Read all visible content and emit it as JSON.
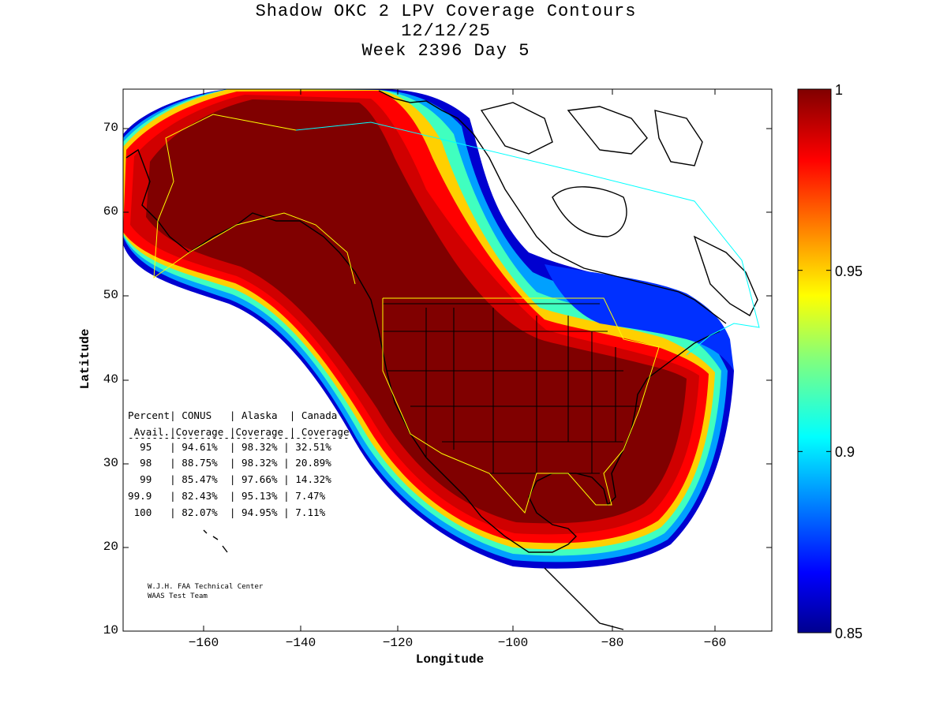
{
  "title": {
    "line1": "Shadow OKC 2 LPV Coverage Contours",
    "line2": "12/12/25",
    "line3": "Week 2396 Day 5"
  },
  "axes": {
    "xlabel": "Longitude",
    "ylabel": "Latitude",
    "x_ticks": [
      "−160",
      "−140",
      "−120",
      "−100",
      "−80",
      "−60"
    ],
    "y_ticks": [
      "70",
      "60",
      "50",
      "40",
      "30",
      "20",
      "10"
    ],
    "xlim": [
      -175,
      -50
    ],
    "ylim": [
      10,
      75
    ]
  },
  "colorbar": {
    "min": 0.85,
    "max": 1,
    "tick_labels": [
      "1",
      "0.95",
      "0.9",
      "0.85"
    ],
    "colormap": "jet"
  },
  "stats_table": {
    "header1": "Percent| CONUS   | Alaska  | Canada",
    "header2": " Avail.|Coverage |Coverage | Coverage",
    "rule": "-------------------------------------",
    "rows": [
      "  95   | 94.61%  | 98.32% | 32.51%",
      "  98   | 88.75%  | 98.32% | 20.89%",
      "  99   | 85.47%  | 97.66% | 14.32%",
      "99.9   | 82.43%  | 95.13% | 7.47%",
      " 100   | 82.07%  | 94.95% | 7.11%"
    ]
  },
  "credit": {
    "line1": "W.J.H. FAA Technical Center",
    "line2": "WAAS Test Team"
  },
  "colors": {
    "core": "#800000",
    "red": "#ff0000",
    "blue": "#0000ff",
    "cyan_boundary": "#00ffff",
    "yellow_boundary": "#ffff00"
  }
}
